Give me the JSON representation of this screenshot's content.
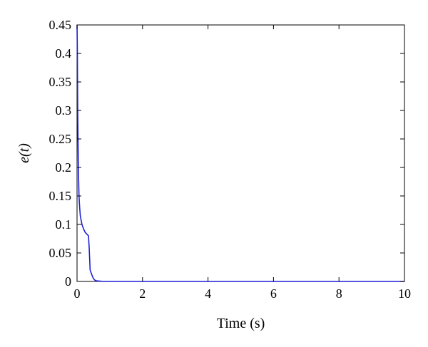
{
  "chart_data": {
    "type": "line",
    "title": "",
    "xlabel": "Time (s)",
    "ylabel": "e(t)",
    "xlim": [
      0,
      10
    ],
    "ylim": [
      0,
      0.45
    ],
    "xticks": [
      0,
      2,
      4,
      6,
      8,
      10
    ],
    "xtick_labels": [
      "0",
      "2",
      "4",
      "6",
      "8",
      "10"
    ],
    "yticks": [
      0,
      0.05,
      0.1,
      0.15,
      0.2,
      0.25,
      0.3,
      0.35,
      0.4,
      0.45
    ],
    "ytick_labels": [
      "0",
      "0.05",
      "0.1",
      "0.15",
      "0.2",
      "0.25",
      "0.3",
      "0.35",
      "0.4",
      "0.45"
    ],
    "grid": false,
    "series": [
      {
        "color": "#1f1fd6",
        "x": [
          0,
          0.01,
          0.02,
          0.04,
          0.06,
          0.08,
          0.1,
          0.15,
          0.2,
          0.25,
          0.3,
          0.35,
          0.37,
          0.4,
          0.45,
          0.5,
          0.55,
          0.6,
          0.7,
          0.8,
          1,
          2,
          4,
          6,
          8,
          10
        ],
        "y": [
          0.45,
          0.4,
          0.3,
          0.2,
          0.15,
          0.13,
          0.115,
          0.1,
          0.092,
          0.086,
          0.083,
          0.08,
          0.06,
          0.02,
          0.012,
          0.005,
          0.002,
          0.001,
          0.0005,
          0,
          0,
          0,
          0,
          0,
          0,
          0
        ]
      }
    ]
  }
}
